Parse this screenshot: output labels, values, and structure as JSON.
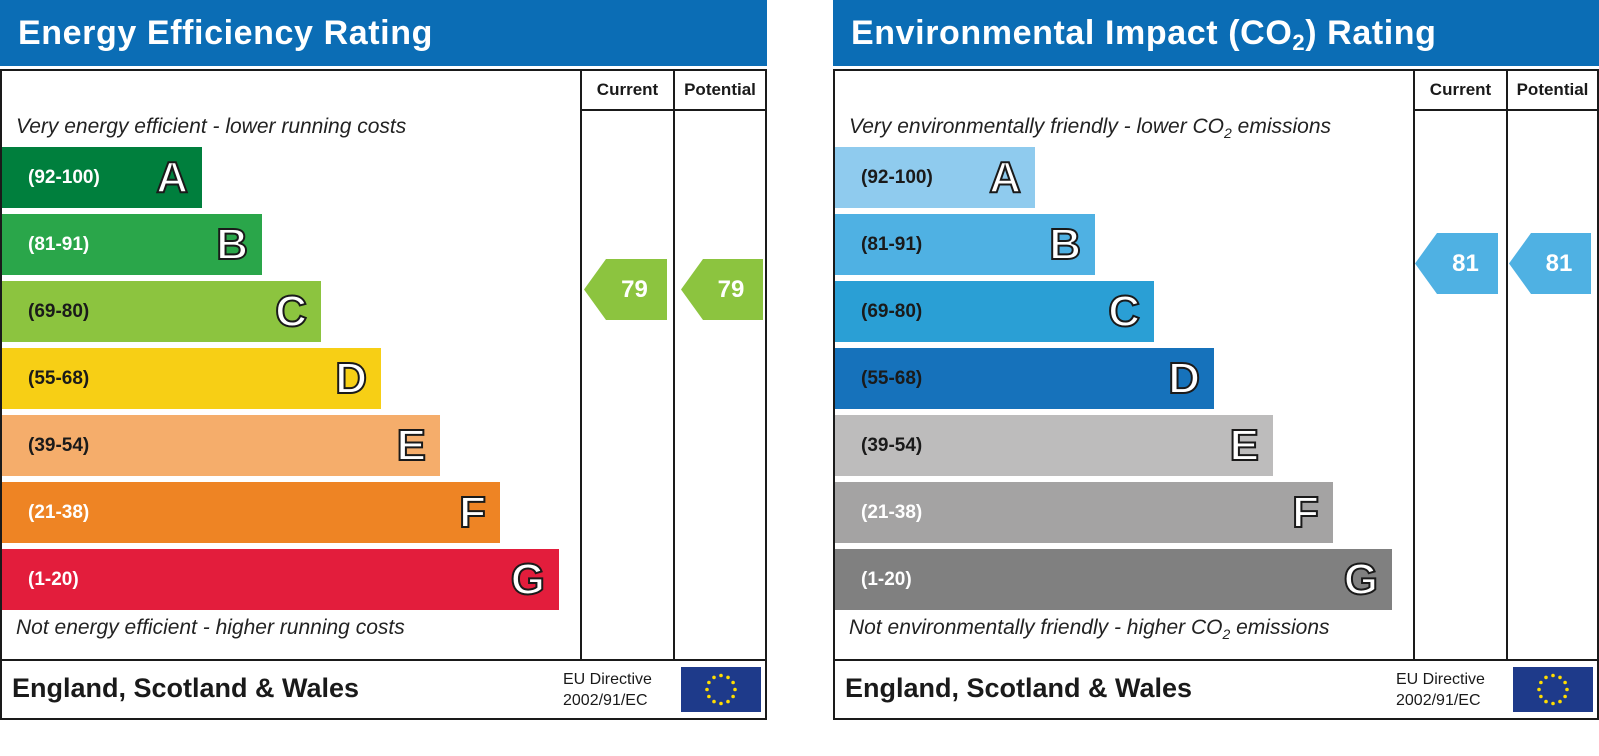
{
  "colors": {
    "title_bar": "#0b6db5",
    "energy_bands": [
      "#007f3d",
      "#2aa64a",
      "#8cc43f",
      "#f7cf15",
      "#f5ad6b",
      "#ee8424",
      "#e31d3c"
    ],
    "co2_bands": [
      "#8fcbee",
      "#4fb1e3",
      "#2a9fd5",
      "#1672bb",
      "#bdbcbc",
      "#a4a3a3",
      "#808080"
    ],
    "energy_arrow": "#8cc43f",
    "co2_arrow": "#4fb1e3",
    "eu_flag": "#1e3a8a",
    "eu_star": "#ffdd00"
  },
  "energy": {
    "title": "Energy Efficiency Rating",
    "col_current": "Current",
    "col_potential": "Potential",
    "top_caption": "Very energy efficient - lower running costs",
    "bottom_caption": "Not energy efficient - higher running costs",
    "footer": "England, Scotland & Wales",
    "directive_line1": "EU Directive",
    "directive_line2": "2002/91/EC",
    "flag_icon": "eu-flag-icon"
  },
  "co2": {
    "title_part1": "Environmental Impact (CO",
    "title_sub": "2",
    "title_part2": ") Rating",
    "col_current": "Current",
    "col_potential": "Potential",
    "top_caption_part1": "Very environmentally friendly - lower CO",
    "top_caption_sub": "2",
    "top_caption_part2": " emissions",
    "bottom_caption_part1": "Not environmentally friendly - higher CO",
    "bottom_caption_sub": "2",
    "bottom_caption_part2": " emissions",
    "footer": "England, Scotland & Wales",
    "directive_line1": "EU Directive",
    "directive_line2": "2002/91/EC",
    "flag_icon": "eu-flag-icon"
  },
  "chart_data": [
    {
      "type": "bar",
      "title": "Energy Efficiency Rating",
      "categories": [
        "(92-100)",
        "(81-91)",
        "(69-80)",
        "(55-68)",
        "(39-54)",
        "(21-38)",
        "(1-20)"
      ],
      "letters": [
        "A",
        "B",
        "C",
        "D",
        "E",
        "F",
        "G"
      ],
      "current": 79,
      "potential": 79
    },
    {
      "type": "bar",
      "title": "Environmental Impact (CO2) Rating",
      "categories": [
        "(92-100)",
        "(81-91)",
        "(69-80)",
        "(55-68)",
        "(39-54)",
        "(21-38)",
        "(1-20)"
      ],
      "letters": [
        "A",
        "B",
        "C",
        "D",
        "E",
        "F",
        "G"
      ],
      "current": 81,
      "potential": 81
    }
  ]
}
